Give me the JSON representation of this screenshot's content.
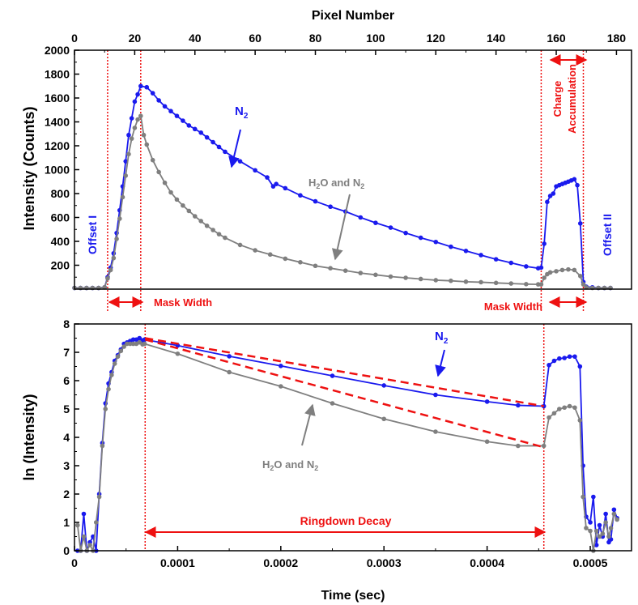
{
  "colors": {
    "n2": "#1a1aee",
    "h2o_n2": "#7f7f7f",
    "annotation": "#ee1111",
    "axis": "#000000"
  },
  "chart_data": [
    {
      "type": "line",
      "top_axis_label": "Pixel Number",
      "ylabel": "Intensity (Counts)",
      "x_axis": "pixel",
      "xlim": [
        0,
        185
      ],
      "ylim": [
        0,
        2000
      ],
      "xticks": [
        0,
        20,
        40,
        60,
        80,
        100,
        120,
        140,
        160,
        180
      ],
      "xtick_labels": [
        "0",
        "20",
        "40",
        "60",
        "80",
        "100",
        "120",
        "140",
        "160",
        "180"
      ],
      "yticks": [
        200,
        400,
        600,
        800,
        1000,
        1200,
        1400,
        1600,
        1800,
        2000
      ],
      "ytick_labels": [
        "200",
        "400",
        "600",
        "800",
        "1000",
        "1200",
        "1400",
        "1600",
        "1800",
        "2000"
      ],
      "vertical_lines": [
        11,
        22,
        155,
        169
      ],
      "series": [
        {
          "name": "N2",
          "color": "#1a1aee",
          "x": [
            0,
            2,
            4,
            6,
            8,
            10,
            11,
            12,
            13,
            14,
            15,
            16,
            17,
            18,
            19,
            20,
            21,
            22,
            24,
            26,
            28,
            30,
            32,
            34,
            36,
            38,
            40,
            42,
            44,
            46,
            48,
            50,
            55,
            60,
            64,
            66,
            67,
            70,
            75,
            80,
            85,
            90,
            95,
            100,
            105,
            110,
            115,
            120,
            125,
            130,
            135,
            140,
            145,
            150,
            154,
            155,
            156,
            157,
            158,
            159,
            160,
            161,
            162,
            163,
            164,
            165,
            166,
            167,
            168,
            169,
            170,
            172,
            174,
            176,
            178
          ],
          "y": [
            10,
            10,
            10,
            10,
            10,
            15,
            100,
            180,
            300,
            470,
            660,
            860,
            1070,
            1290,
            1430,
            1570,
            1630,
            1700,
            1690,
            1640,
            1580,
            1530,
            1490,
            1450,
            1410,
            1370,
            1340,
            1310,
            1270,
            1230,
            1190,
            1150,
            1070,
            995,
            935,
            860,
            880,
            845,
            785,
            735,
            690,
            650,
            600,
            555,
            515,
            470,
            430,
            395,
            355,
            320,
            285,
            250,
            220,
            190,
            175,
            180,
            380,
            730,
            780,
            800,
            860,
            870,
            880,
            890,
            900,
            910,
            920,
            870,
            550,
            60,
            20,
            15,
            10,
            10,
            10
          ],
          "label": "N2"
        },
        {
          "name": "H2O and N2",
          "color": "#7f7f7f",
          "x": [
            0,
            2,
            4,
            6,
            8,
            10,
            11,
            12,
            13,
            14,
            15,
            16,
            17,
            18,
            19,
            20,
            21,
            22,
            23,
            24,
            26,
            28,
            30,
            32,
            34,
            36,
            38,
            40,
            42,
            44,
            46,
            48,
            50,
            55,
            60,
            65,
            70,
            75,
            80,
            85,
            90,
            95,
            100,
            105,
            110,
            115,
            120,
            125,
            130,
            135,
            140,
            145,
            150,
            154,
            155,
            156,
            157,
            158,
            160,
            162,
            164,
            166,
            168,
            169,
            170,
            172,
            174,
            176,
            178
          ],
          "y": [
            10,
            10,
            10,
            10,
            10,
            15,
            90,
            160,
            260,
            420,
            590,
            770,
            950,
            1130,
            1260,
            1350,
            1420,
            1450,
            1290,
            1210,
            1080,
            980,
            890,
            810,
            750,
            700,
            655,
            610,
            570,
            530,
            495,
            460,
            430,
            370,
            325,
            290,
            255,
            225,
            195,
            175,
            155,
            135,
            120,
            105,
            95,
            85,
            75,
            70,
            62,
            58,
            52,
            47,
            42,
            40,
            40,
            95,
            125,
            140,
            150,
            160,
            165,
            160,
            110,
            40,
            15,
            10,
            10,
            10,
            10
          ],
          "label": "H2O and N2"
        }
      ]
    },
    {
      "type": "line",
      "xlabel": "Time (sec)",
      "ylabel": "ln (Intensity)",
      "xlim": [
        0,
        0.00054
      ],
      "ylim": [
        0,
        8
      ],
      "xticks": [
        0,
        0.0001,
        0.0002,
        0.0003,
        0.0004,
        0.0005
      ],
      "xtick_labels": [
        "0",
        "0.0001",
        "0.0002",
        "0.0003",
        "0.0004",
        "0.0005"
      ],
      "yticks": [
        0,
        1,
        2,
        3,
        4,
        5,
        6,
        7,
        8
      ],
      "ytick_labels": [
        "0",
        "1",
        "2",
        "3",
        "4",
        "5",
        "6",
        "7",
        "8"
      ],
      "vertical_lines": [
        6.85e-05,
        0.000455
      ],
      "series": [
        {
          "name": "N2",
          "color": "#1a1aee",
          "x": [
            3e-06,
            6e-06,
            9e-06,
            1.2e-05,
            1.5e-05,
            1.8e-05,
            2.1e-05,
            2.4e-05,
            2.7e-05,
            3e-05,
            3.3e-05,
            3.6e-05,
            3.9e-05,
            4.2e-05,
            4.5e-05,
            4.8e-05,
            5.1e-05,
            5.4e-05,
            5.7e-05,
            6e-05,
            6.3e-05,
            6.6e-05,
            6.8e-05,
            0.0001,
            0.00015,
            0.0002,
            0.00025,
            0.0003,
            0.00035,
            0.0004,
            0.00043,
            0.000455,
            0.00046,
            0.000465,
            0.00047,
            0.000475,
            0.00048,
            0.000485,
            0.00049,
            0.000493,
            0.000496,
            0.0005,
            0.000503,
            0.000506,
            0.000509,
            0.000512,
            0.000515,
            0.000518,
            0.00052,
            0.000523,
            0.000526
          ],
          "y": [
            0,
            0,
            1.3,
            0,
            0.3,
            0.5,
            0,
            2.0,
            3.8,
            5.2,
            5.9,
            6.3,
            6.7,
            6.9,
            7.1,
            7.3,
            7.35,
            7.4,
            7.45,
            7.45,
            7.5,
            7.42,
            7.45,
            7.24,
            6.86,
            6.52,
            6.17,
            5.83,
            5.5,
            5.26,
            5.13,
            5.1,
            6.55,
            6.7,
            6.78,
            6.8,
            6.85,
            6.85,
            6.5,
            3.0,
            1.2,
            1.0,
            1.9,
            0.2,
            0.9,
            0.5,
            1.3,
            0.3,
            0.4,
            1.45,
            1.15
          ],
          "label": "N2"
        },
        {
          "name": "H2O and N2",
          "color": "#7f7f7f",
          "x": [
            3e-06,
            6e-06,
            9e-06,
            1.2e-05,
            1.5e-05,
            1.8e-05,
            2.1e-05,
            2.4e-05,
            2.7e-05,
            3e-05,
            3.3e-05,
            3.6e-05,
            3.9e-05,
            4.2e-05,
            4.5e-05,
            4.8e-05,
            5.1e-05,
            5.4e-05,
            5.7e-05,
            6e-05,
            6.3e-05,
            6.6e-05,
            6.8e-05,
            0.0001,
            0.00015,
            0.0002,
            0.00025,
            0.0003,
            0.00035,
            0.0004,
            0.00043,
            0.000455,
            0.00046,
            0.000465,
            0.00047,
            0.000475,
            0.00048,
            0.000485,
            0.00049,
            0.000493,
            0.000496,
            0.0005,
            0.000503,
            0.000506,
            0.000509,
            0.000512,
            0.000515,
            0.000518,
            0.00052,
            0.000523,
            0.000526
          ],
          "y": [
            0.9,
            0,
            0.5,
            0,
            0.2,
            0,
            1.0,
            1.9,
            3.7,
            5.0,
            5.7,
            6.2,
            6.6,
            6.85,
            7.05,
            7.2,
            7.3,
            7.3,
            7.3,
            7.3,
            7.35,
            7.28,
            7.3,
            6.95,
            6.3,
            5.8,
            5.2,
            4.65,
            4.2,
            3.85,
            3.7,
            3.7,
            4.7,
            4.85,
            5.0,
            5.05,
            5.1,
            5.05,
            4.6,
            1.9,
            0.8,
            0.7,
            0.0,
            0.7,
            0.5,
            0.6,
            1.0,
            0.5,
            0.8,
            1.3,
            1.1
          ],
          "label": "H2O and N2"
        },
        {
          "name": "fit N2",
          "color": "#ee1111",
          "dashed": true,
          "x": [
            6.85e-05,
            0.000455
          ],
          "y": [
            7.5,
            5.1
          ]
        },
        {
          "name": "fit H2O and N2",
          "color": "#ee1111",
          "dashed": true,
          "x": [
            6.85e-05,
            0.000455
          ],
          "y": [
            7.45,
            3.65
          ]
        }
      ]
    }
  ],
  "annotations": {
    "n2_top": "N",
    "sub_2": "2",
    "h2o_top_a": "H",
    "h2o_top_b": "O and N",
    "offset_1": "Offset I",
    "offset_2": "Offset II",
    "charge_line1": "Charge",
    "charge_line2": "Accumulation",
    "mask_width_left": "Mask Width",
    "mask_width_right": "Mask Width",
    "ringdown": "Ringdown Decay"
  }
}
